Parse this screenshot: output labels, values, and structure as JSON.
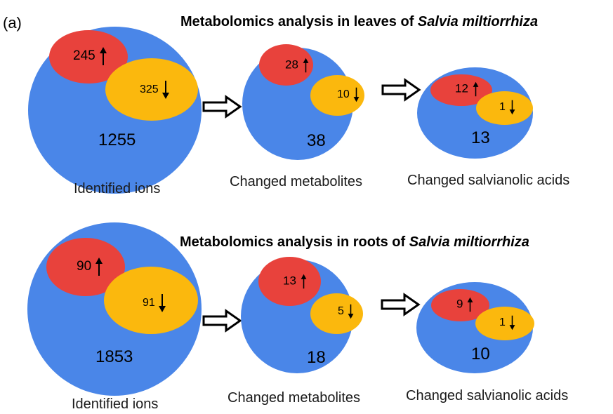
{
  "panel_label": "(a)",
  "leaves": {
    "title_prefix": "Metabolomics analysis in leaves of ",
    "title_species": "Salvia miltiorrhiza",
    "identified": {
      "total": "1255",
      "up": "245",
      "down": "325",
      "caption": "Identified ions"
    },
    "changed": {
      "total": "38",
      "up": "28",
      "down": "10",
      "caption": "Changed metabolites"
    },
    "salvianolic": {
      "total": "13",
      "up": "12",
      "down": "1",
      "caption": "Changed salvianolic acids"
    }
  },
  "roots": {
    "title_prefix": "Metabolomics analysis in roots of ",
    "title_species": "Salvia miltiorrhiza",
    "identified": {
      "total": "1853",
      "up": "90",
      "down": "91",
      "caption": "Identified ions"
    },
    "changed": {
      "total": "18",
      "up": "13",
      "down": "5",
      "caption": "Changed metabolites"
    },
    "salvianolic": {
      "total": "10",
      "up": "9",
      "down": "1",
      "caption": "Changed salvianolic acids"
    }
  },
  "colors": {
    "total": "#4a86e8",
    "up": "#e8423c",
    "down": "#fbb80d"
  }
}
